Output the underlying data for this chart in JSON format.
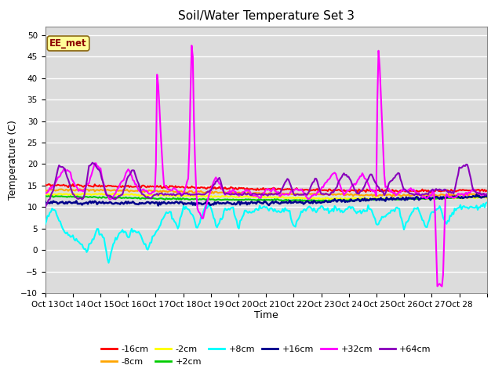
{
  "title": "Soil/Water Temperature Set 3",
  "xlabel": "Time",
  "ylabel": "Temperature (C)",
  "ylim": [
    -10,
    52
  ],
  "yticks": [
    -10,
    -5,
    0,
    5,
    10,
    15,
    20,
    25,
    30,
    35,
    40,
    45,
    50
  ],
  "annotation_text": "EE_met",
  "annotation_color": "#8B0000",
  "annotation_bg": "#FFFF99",
  "annotation_border": "#8B6914",
  "series_order": [
    "-16cm",
    "-8cm",
    "-2cm",
    "+2cm",
    "+8cm",
    "+16cm",
    "+32cm",
    "+64cm"
  ],
  "series": {
    "-16cm": {
      "color": "#FF0000",
      "lw": 1.5
    },
    "-8cm": {
      "color": "#FFA500",
      "lw": 1.5
    },
    "-2cm": {
      "color": "#FFFF00",
      "lw": 1.5
    },
    "+2cm": {
      "color": "#00CC00",
      "lw": 1.5
    },
    "+8cm": {
      "color": "#00FFFF",
      "lw": 1.5
    },
    "+16cm": {
      "color": "#00008B",
      "lw": 1.8
    },
    "+32cm": {
      "color": "#FF00FF",
      "lw": 1.5
    },
    "+64cm": {
      "color": "#8800BB",
      "lw": 1.5
    }
  },
  "plot_bg": "#DCDCDC",
  "fig_bg": "#FFFFFF",
  "grid_color": "#FFFFFF",
  "n_days": 16,
  "start_day": 13,
  "start_month": "Oct"
}
